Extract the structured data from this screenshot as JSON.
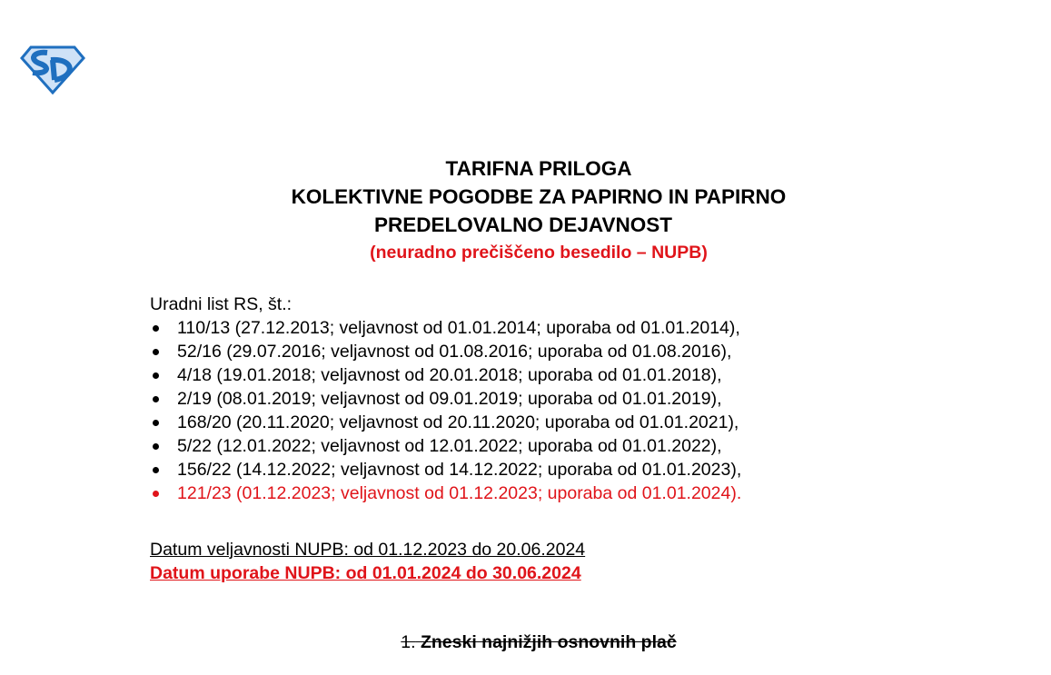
{
  "logo": {
    "text": "SD",
    "color": "#1f6fbf"
  },
  "title": {
    "lines": [
      "TARIFNA PRILOGA",
      "KOLEKTIVNE POGODBE ZA PAPIRNO IN PAPIRNO",
      "PREDELOVALNO DEJAVNOST"
    ],
    "subtitle": "(neuradno prečiščeno besedilo – NUPB)"
  },
  "gazette": {
    "label": "Uradni list RS, št.:",
    "items": [
      "110/13 (27.12.2013; veljavnost od 01.01.2014; uporaba od 01.01.2014),",
      "52/16 (29.07.2016; veljavnost od 01.08.2016; uporaba od 01.08.2016),",
      "4/18 (19.01.2018; veljavnost od 20.01.2018; uporaba od 01.01.2018),",
      "2/19 (08.01.2019; veljavnost od 09.01.2019; uporaba od 01.01.2019),",
      "168/20 (20.11.2020; veljavnost od 20.11.2020; uporaba od 01.01.2021),",
      "5/22 (12.01.2022; veljavnost od 12.01.2022; uporaba od 01.01.2022),",
      "156/22 (14.12.2022; veljavnost od 14.12.2022; uporaba od 01.01.2023),",
      "121/23 (01.12.2023; veljavnost od 01.12.2023; uporaba od 01.01.2024)."
    ]
  },
  "validity": "Datum veljavnosti NUPB: od 01.12.2023 do 20.06.2024",
  "usage": "Datum uporabe NUPB: od 01.01.2024 do 30.06.2024",
  "section": {
    "number": "1.",
    "title": "Zneski najnižjih osnovnih plač"
  },
  "colors": {
    "accent_red": "#e0141a",
    "logo_blue": "#1f6fbf"
  }
}
